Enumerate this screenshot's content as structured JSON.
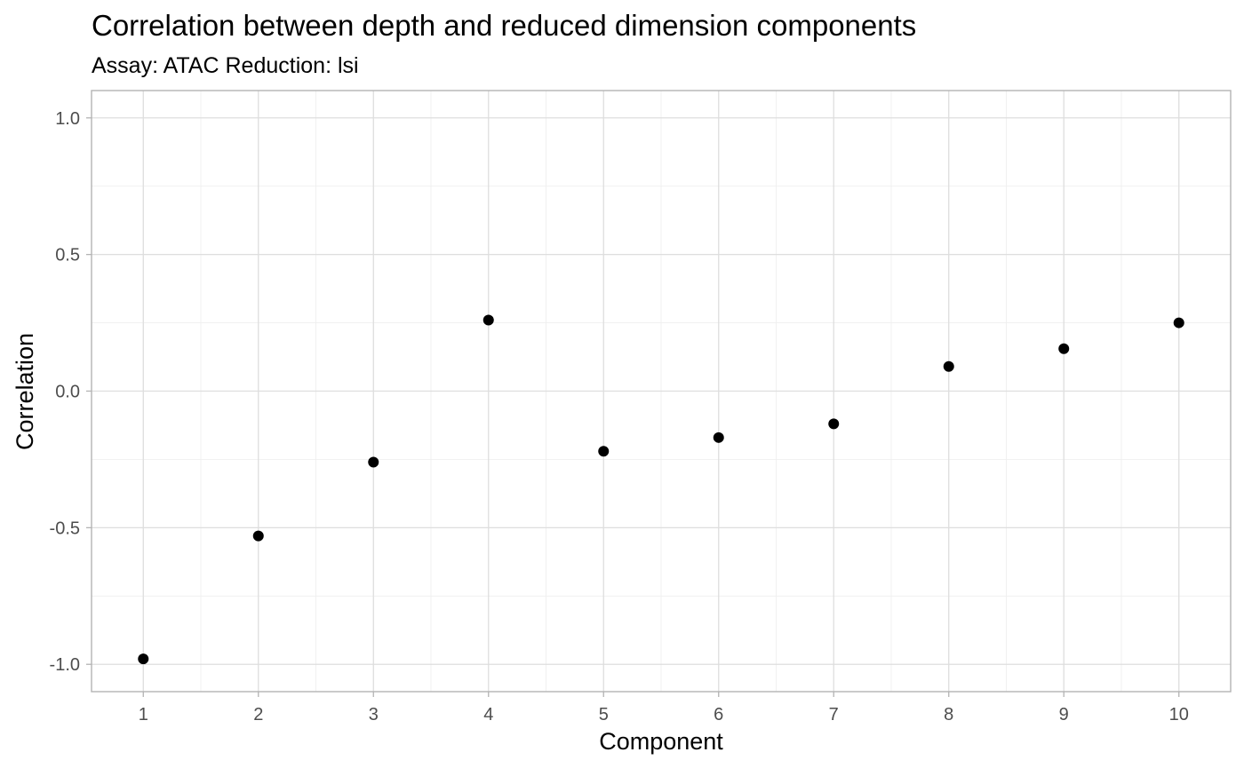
{
  "chart_data": {
    "type": "scatter",
    "title": "Correlation between depth and reduced dimension components",
    "subtitle": "Assay: ATAC Reduction: lsi",
    "xlabel": "Component",
    "ylabel": "Correlation",
    "x": [
      1,
      2,
      3,
      4,
      5,
      6,
      7,
      8,
      9,
      10
    ],
    "y": [
      -0.98,
      -0.53,
      -0.26,
      0.26,
      -0.22,
      -0.17,
      -0.12,
      0.09,
      0.155,
      0.25
    ],
    "x_ticks": [
      "1",
      "2",
      "3",
      "4",
      "5",
      "6",
      "7",
      "8",
      "9",
      "10"
    ],
    "y_ticks": [
      {
        "value": -1.0,
        "label": "-1.0"
      },
      {
        "value": -0.5,
        "label": "-0.5"
      },
      {
        "value": 0.0,
        "label": "0.0"
      },
      {
        "value": 0.5,
        "label": "0.5"
      },
      {
        "value": 1.0,
        "label": "1.0"
      }
    ],
    "xlim": [
      0.55,
      10.45
    ],
    "ylim": [
      -1.1,
      1.1
    ],
    "grid": true,
    "legend": "none",
    "point_color": "#000000"
  }
}
